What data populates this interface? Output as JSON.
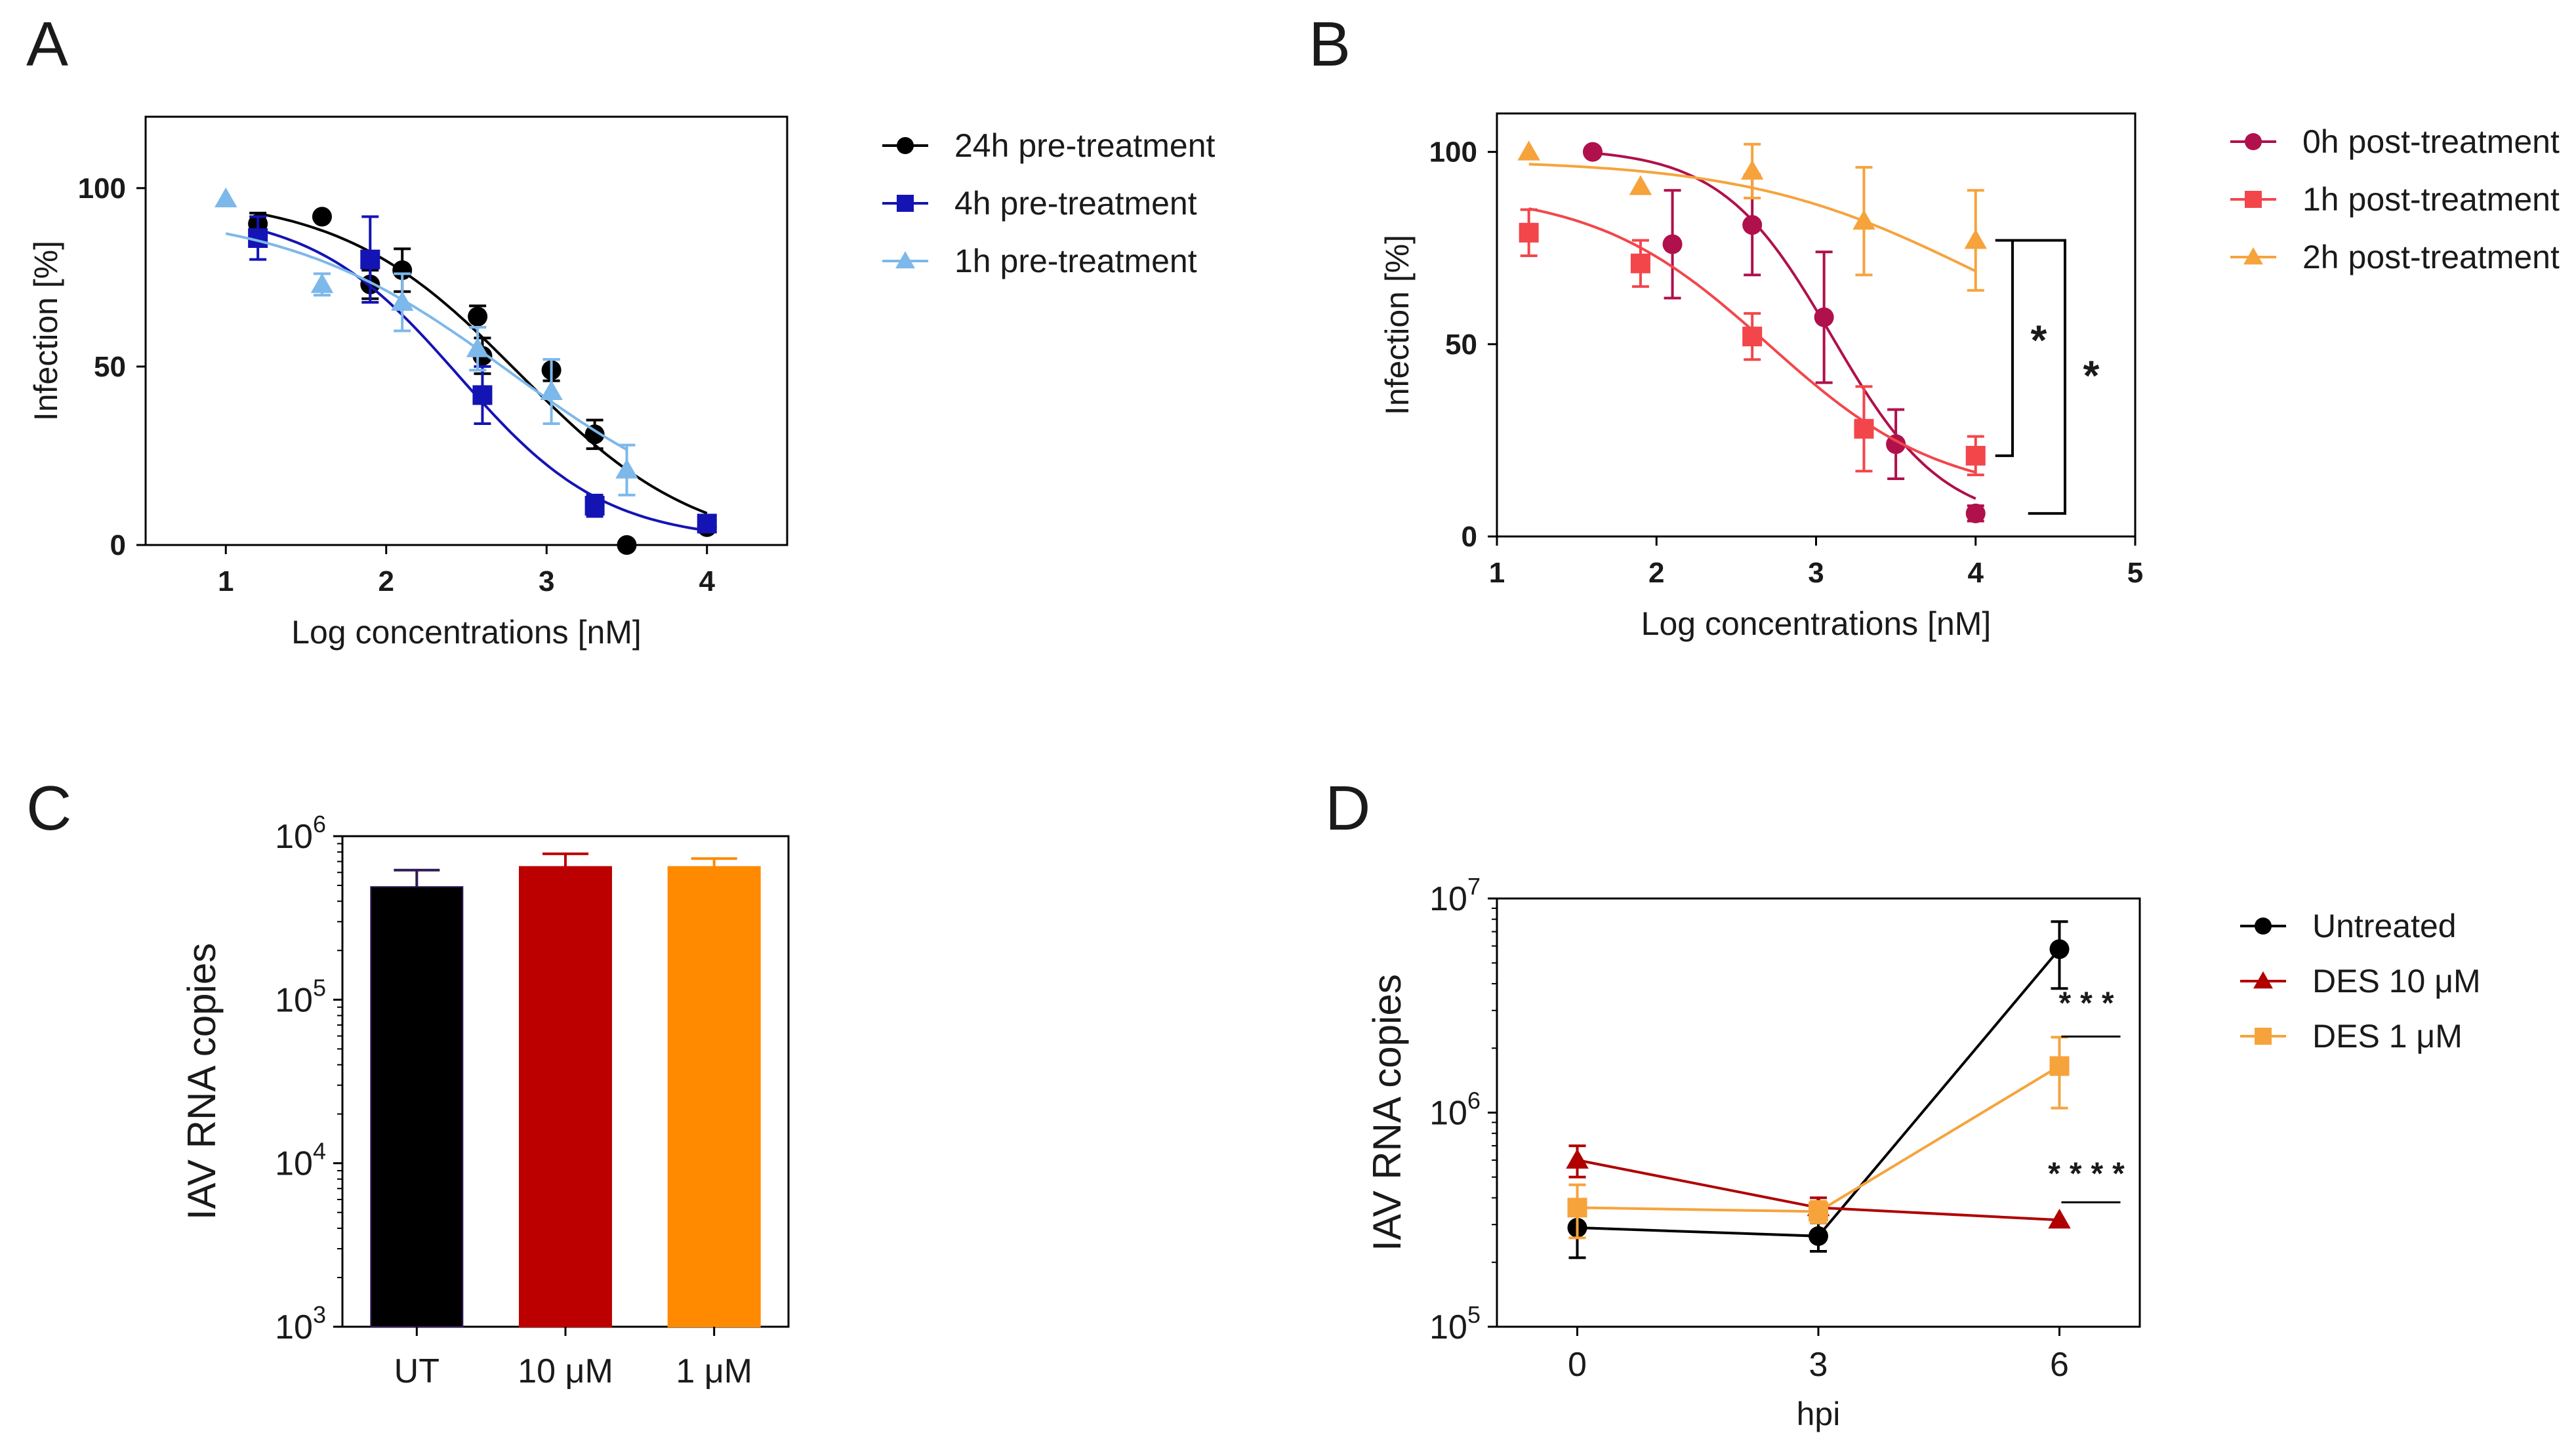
{
  "chart_data": [
    {
      "panel": "A",
      "type": "scatter",
      "title": "",
      "xlabel": "Log concentrations [nM]",
      "ylabel": "Infection [%]",
      "xlim": [
        0.5,
        4.5
      ],
      "ylim": [
        0,
        120
      ],
      "xticks": [
        "1",
        "2",
        "3",
        "4"
      ],
      "yticks": [
        "0",
        "50",
        "100"
      ],
      "legend": "right",
      "series": [
        {
          "name": "24h pre-treatment",
          "color": "#000000",
          "marker": "circle",
          "x": [
            1.2,
            1.6,
            1.9,
            2.1,
            2.57,
            2.6,
            3.03,
            3.3,
            3.5,
            4.0
          ],
          "y": [
            90,
            92,
            73,
            77,
            64,
            53,
            49,
            31,
            0,
            5
          ],
          "err": [
            3,
            0,
            4,
            6,
            3,
            5,
            3,
            4,
            0,
            1
          ],
          "fit": {
            "top": 98,
            "bottom": -2,
            "logic50": 2.83,
            "hill": 0.78
          }
        },
        {
          "name": "4h pre-treatment",
          "color": "#1414b4",
          "marker": "square",
          "x": [
            1.2,
            1.9,
            2.6,
            3.3,
            4.0
          ],
          "y": [
            86,
            80,
            42,
            11,
            6
          ],
          "err": [
            6,
            12,
            8,
            3,
            1
          ],
          "fit": {
            "top": 94,
            "bottom": 1,
            "logic50": 2.45,
            "hill": 0.95
          }
        },
        {
          "name": "1h pre-treatment",
          "color": "#7db8ea",
          "marker": "triangle",
          "x": [
            1.0,
            1.6,
            2.1,
            2.57,
            3.03,
            3.5
          ],
          "y": [
            97,
            73,
            68,
            55,
            43,
            21
          ],
          "err": [
            0,
            3,
            8,
            6,
            9,
            7
          ],
          "fit": {
            "top": 94,
            "bottom": 3,
            "logic50": 2.77,
            "hill": 0.62
          }
        }
      ]
    },
    {
      "panel": "B",
      "type": "scatter",
      "title": "",
      "xlabel": "Log concentrations [nM]",
      "ylabel": "Infection [%]",
      "xlim": [
        1,
        5
      ],
      "ylim": [
        0,
        110
      ],
      "xticks": [
        "1",
        "2",
        "3",
        "4",
        "5"
      ],
      "yticks": [
        "0",
        "50",
        "100"
      ],
      "legend": "right",
      "significance": [
        "*",
        "*"
      ],
      "series": [
        {
          "name": "0h post-treatment",
          "color": "#b0104c",
          "marker": "circle",
          "x": [
            1.6,
            2.1,
            2.6,
            3.05,
            3.5,
            4.0
          ],
          "y": [
            100,
            76,
            81,
            57,
            24,
            6
          ],
          "err": [
            0,
            14,
            13,
            17,
            9,
            2
          ],
          "fit": {
            "top": 101,
            "bottom": 3,
            "logic50": 3.1,
            "hill": 1.25
          }
        },
        {
          "name": "1h post-treatment",
          "color": "#f2464b",
          "marker": "square",
          "x": [
            1.2,
            1.9,
            2.6,
            3.3,
            4.0
          ],
          "y": [
            79,
            71,
            52,
            28,
            21
          ],
          "err": [
            6,
            6,
            6,
            11,
            5
          ],
          "fit": {
            "top": 90,
            "bottom": 10,
            "logic50": 2.7,
            "hill": 0.8
          }
        },
        {
          "name": "2h post-treatment",
          "color": "#f6a33c",
          "marker": "triangle",
          "x": [
            1.2,
            1.9,
            2.6,
            3.3,
            4.0
          ],
          "y": [
            100,
            91,
            95,
            82,
            77
          ],
          "err": [
            0,
            0,
            7,
            14,
            13
          ],
          "fit": {
            "top": 98,
            "bottom": 40,
            "logic50": 4.0,
            "hill": 0.6
          }
        }
      ]
    },
    {
      "panel": "C",
      "type": "bar",
      "title": "",
      "xlabel": "",
      "ylabel": "IAV RNA copies",
      "yscale": "log",
      "ylim": [
        1000,
        1000000
      ],
      "ytick_base": "10",
      "ytick_exponents": [
        "3",
        "4",
        "5",
        "6"
      ],
      "categories": [
        "UT",
        "10 μM",
        "1 μM"
      ],
      "values": [
        490000,
        650000,
        650000
      ],
      "errors": [
        130000,
        130000,
        80000
      ],
      "colors": [
        "#000000",
        "#bc0000",
        "#ff8a00"
      ],
      "error_colors": [
        "#301a55",
        "#bc0000",
        "#ff8a00"
      ]
    },
    {
      "panel": "D",
      "type": "line",
      "title": "",
      "xlabel": "hpi",
      "ylabel": "IAV RNA copies",
      "yscale": "log",
      "ylim": [
        100000,
        10000000
      ],
      "xlim": [
        -1,
        7
      ],
      "xticks": [
        "0",
        "3",
        "6"
      ],
      "ytick_base": "10",
      "ytick_exponents": [
        "5",
        "6",
        "7"
      ],
      "legend": "right",
      "significance": [
        "***",
        "****"
      ],
      "series": [
        {
          "name": "Untreated",
          "color": "#000000",
          "marker": "circle",
          "x": [
            0,
            3,
            6
          ],
          "y": [
            290000,
            265000,
            5800000
          ],
          "err": [
            80000,
            40000,
            2000000
          ]
        },
        {
          "name": "DES 10 μM",
          "color": "#b00000",
          "marker": "triangle",
          "x": [
            0,
            3,
            6
          ],
          "y": [
            600000,
            360000,
            315000
          ],
          "err": [
            100000,
            40000,
            0
          ]
        },
        {
          "name": "DES 1 μM",
          "color": "#f6a33c",
          "marker": "square",
          "x": [
            0,
            3,
            6
          ],
          "y": [
            360000,
            345000,
            1650000
          ],
          "err": [
            100000,
            40000,
            600000
          ]
        }
      ]
    }
  ],
  "panel_labels": [
    "A",
    "B",
    "C",
    "D"
  ]
}
